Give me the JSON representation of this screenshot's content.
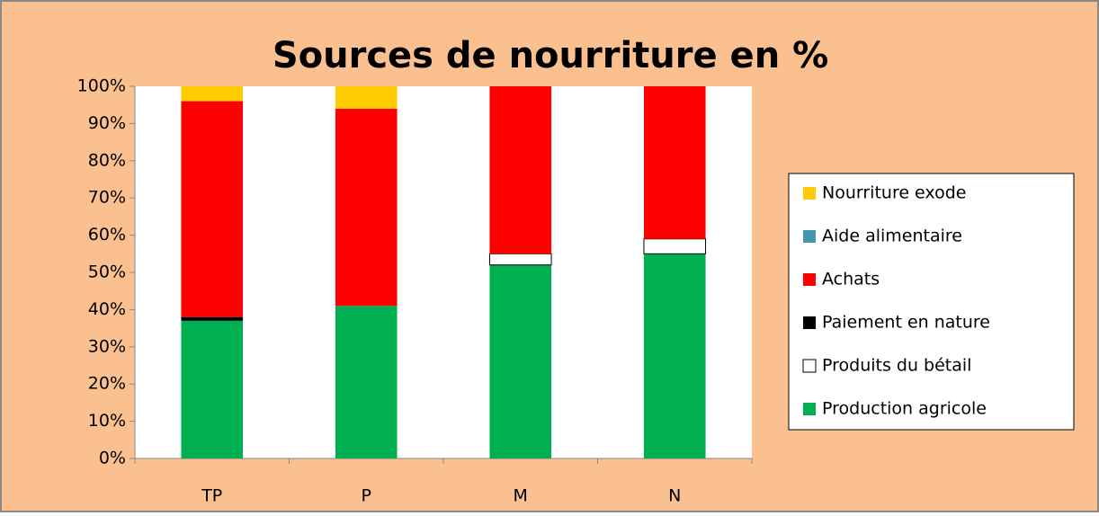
{
  "chart_data": {
    "type": "stacked_bar",
    "title": "Sources de nourriture en %",
    "categories": [
      "TP",
      "P",
      "M",
      "N"
    ],
    "series": [
      {
        "name": "Production agricole",
        "color": "#00b050",
        "values": [
          37,
          41,
          52,
          55
        ]
      },
      {
        "name": "Produits du bétail",
        "color": "#ffffff",
        "values": [
          0,
          0,
          3,
          4
        ]
      },
      {
        "name": "Paiement en nature",
        "color": "#000000",
        "values": [
          1,
          0,
          0,
          0
        ]
      },
      {
        "name": "Achats",
        "color": "#ff0000",
        "values": [
          58,
          53,
          45,
          41
        ]
      },
      {
        "name": "Aide alimentaire",
        "color": "#4397b0",
        "values": [
          0,
          0,
          0,
          0
        ]
      },
      {
        "name": "Nourriture exode",
        "color": "#ffcc00",
        "values": [
          4,
          6,
          0,
          0
        ]
      }
    ],
    "ylim": [
      0,
      100
    ],
    "yticks": [
      {
        "value": 0,
        "label": "0%"
      },
      {
        "value": 10,
        "label": "10%"
      },
      {
        "value": 20,
        "label": "20%"
      },
      {
        "value": 30,
        "label": "30%"
      },
      {
        "value": 40,
        "label": "40%"
      },
      {
        "value": 50,
        "label": "50%"
      },
      {
        "value": 60,
        "label": "60%"
      },
      {
        "value": 70,
        "label": "70%"
      },
      {
        "value": 80,
        "label": "80%"
      },
      {
        "value": 90,
        "label": "90%"
      },
      {
        "value": 100,
        "label": "100%"
      }
    ],
    "grid": false,
    "legend": "right"
  }
}
